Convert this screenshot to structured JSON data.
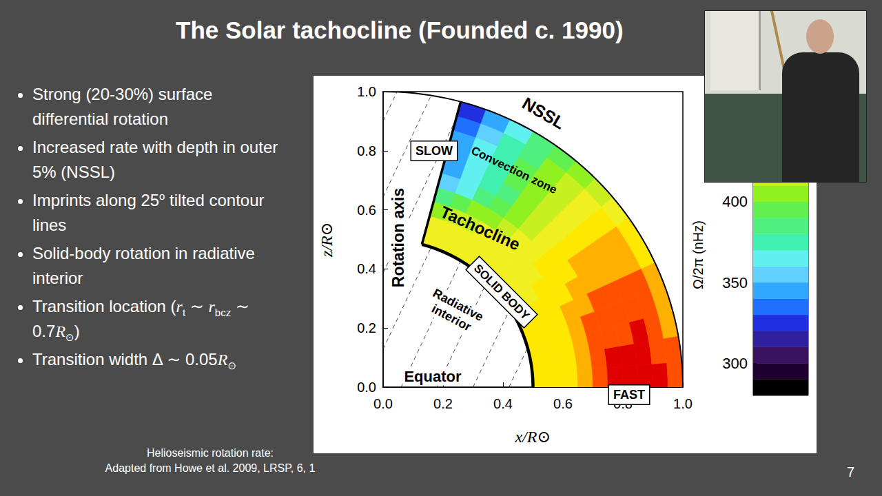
{
  "slide": {
    "title": "The Solar tachocline (Founded c. 1990)",
    "bullets": [
      [
        "Strong (20-30%) surface differential rotation"
      ],
      [
        "Increased rate with depth in outer 5% (NSSL)"
      ],
      [
        "Imprints along 25",
        {
          "sup": "o"
        },
        " tilted contour lines"
      ],
      [
        "Solid-body rotation in radiative interior"
      ],
      [
        "Transition location (",
        {
          "math": "r",
          "sub": "t"
        },
        " ∼ ",
        {
          "math": "r",
          "sub": "bcz"
        },
        " ∼ 0.7",
        {
          "math": "R",
          "sub": "⊙"
        },
        ")"
      ],
      [
        "Transition width Δ ∼ 0.05",
        {
          "math": "R",
          "sub": "⊙"
        }
      ]
    ],
    "source": [
      "Helioseismic rotation rate:",
      "Adapted from Howe et al. 2009, LRSP, 6, 1"
    ],
    "page_number": "7"
  },
  "chart_data": {
    "type": "heatmap",
    "xlabel": "x/R⊙",
    "ylabel": "z/R⊙",
    "xlim": [
      0,
      1
    ],
    "ylim": [
      0,
      1
    ],
    "xticks": [
      {
        "value": 0,
        "label": "0.0"
      },
      0.2,
      0.4,
      0.6,
      0.8,
      {
        "value": 1,
        "label": "1.0"
      }
    ],
    "yticks": [
      {
        "value": 0,
        "label": "0.0"
      },
      0.2,
      0.4,
      0.6,
      0.8,
      {
        "value": 1,
        "label": "1.0"
      }
    ],
    "r_edges": [
      0.5,
      0.55,
      0.6,
      0.65,
      0.7,
      0.75,
      0.8,
      0.85,
      0.9,
      0.95,
      1.0
    ],
    "latitude_edges": [
      0,
      5,
      10,
      15,
      20,
      25,
      30,
      35,
      40,
      45,
      50,
      55,
      60,
      65,
      70,
      75
    ],
    "omega": [
      [
        430,
        434,
        438,
        448,
        458,
        461,
        462,
        463,
        460,
        452
      ],
      [
        430,
        433,
        437,
        447,
        457,
        460,
        461,
        462,
        459,
        451
      ],
      [
        430,
        433,
        436,
        446,
        455,
        458,
        459,
        460,
        457,
        449
      ],
      [
        430,
        432,
        435,
        444,
        452,
        455,
        456,
        457,
        454,
        446
      ],
      [
        430,
        431,
        434,
        441,
        448,
        451,
        452,
        453,
        450,
        443
      ],
      [
        429,
        430,
        432,
        438,
        444,
        446,
        447,
        448,
        445,
        438
      ],
      [
        429,
        429,
        430,
        435,
        438,
        440,
        441,
        442,
        440,
        433
      ],
      [
        428,
        428,
        428,
        430,
        431,
        432,
        433,
        434,
        432,
        425
      ],
      [
        428,
        428,
        427,
        425,
        423,
        423,
        424,
        425,
        423,
        416
      ],
      [
        428,
        427,
        425,
        420,
        414,
        413,
        414,
        415,
        413,
        406
      ],
      [
        428,
        426,
        423,
        414,
        404,
        401,
        402,
        403,
        401,
        394
      ],
      [
        428,
        425,
        420,
        408,
        394,
        389,
        390,
        391,
        389,
        382
      ],
      [
        428,
        424,
        417,
        400,
        382,
        375,
        376,
        377,
        374,
        366
      ],
      [
        427,
        423,
        413,
        392,
        368,
        360,
        360,
        360,
        357,
        348
      ],
      [
        427,
        421,
        409,
        383,
        353,
        343,
        342,
        341,
        337,
        326
      ]
    ],
    "colorbar": {
      "label": "Ω/2π (nHz)",
      "range": [
        280,
        470
      ],
      "ticks": [
        300,
        350,
        400
      ]
    },
    "guide_lines": {
      "tilt": 25,
      "x_intercepts": [
        -0.42,
        -0.3,
        -0.18,
        -0.06,
        0.06,
        0.18,
        0.3,
        0.42,
        0.54,
        0.66,
        0.78,
        0.9
      ],
      "line_style": "dashed"
    },
    "annotations": [
      "NSSL",
      "SLOW",
      "Convection zone",
      "Tachocline",
      "SOLID BODY",
      "Radiative\ninterior",
      "Rotation axis",
      "Equator",
      "FAST"
    ]
  }
}
